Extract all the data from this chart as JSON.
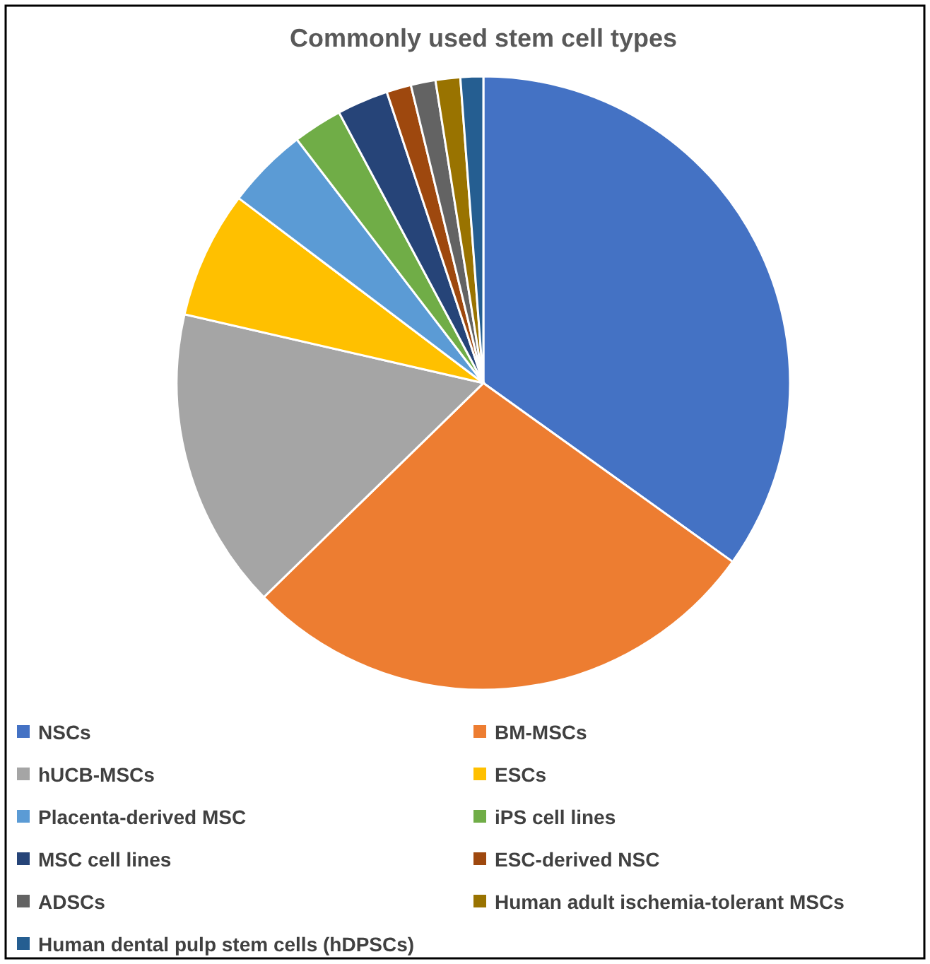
{
  "chart_data": {
    "type": "pie",
    "title": "Commonly used stem cell types",
    "categories": [
      "NSCs",
      "BM-MSCs",
      "hUCB-MSCs",
      "ESCs",
      "Placenta-derived MSC",
      "iPS cell lines",
      "MSC cell lines",
      "ESC-derived NSC",
      "ADSCs",
      "Human adult ischemia-tolerant MSCs",
      "Human dental pulp stem cells (hDPSCs)"
    ],
    "values": [
      34.9,
      27.8,
      15.9,
      6.7,
      4.3,
      2.6,
      2.7,
      1.3,
      1.3,
      1.3,
      1.2
    ],
    "colors": [
      "#4472c4",
      "#ed7d31",
      "#a5a5a5",
      "#ffc000",
      "#5b9bd5",
      "#70ad47",
      "#264478",
      "#9e480e",
      "#636363",
      "#997300",
      "#255e91"
    ],
    "legend": "bottom"
  }
}
